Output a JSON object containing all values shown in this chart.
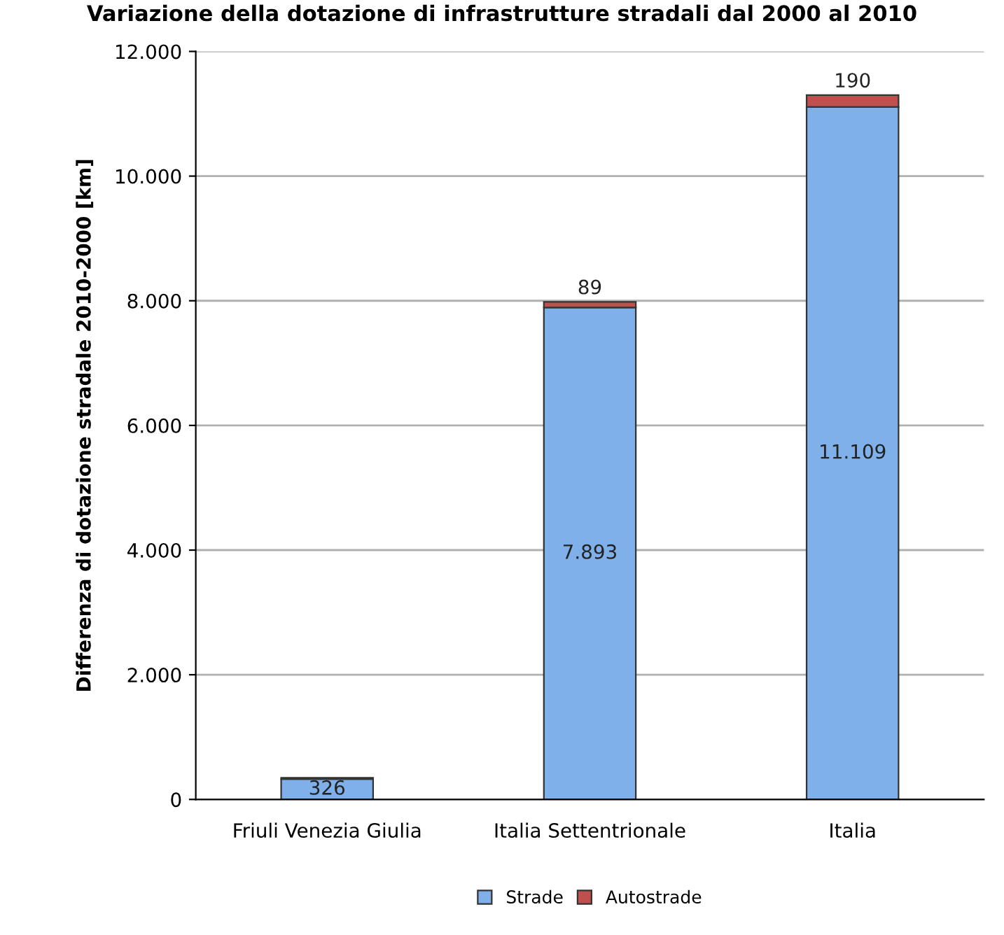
{
  "chart_data": {
    "type": "bar",
    "title": "Variazione della dotazione di infrastrutture stradali dal 2000 al 2010",
    "ylabel": "Differenza di dotazione stradale 2010-2000 [km]",
    "categories": [
      "Friuli Venezia Giulia",
      "Italia Settentrionale",
      "Italia"
    ],
    "stacked": true,
    "series": [
      {
        "name": "Strade",
        "color": "#7fb0ea",
        "values": [
          326,
          7893,
          11109
        ],
        "value_labels": [
          "326",
          "7.893",
          "11.109"
        ]
      },
      {
        "name": "Autostrade",
        "color": "#c0504d",
        "values": [
          20,
          89,
          190
        ],
        "value_labels": [
          null,
          "89",
          "190"
        ]
      }
    ],
    "ylim": [
      0,
      12000
    ],
    "yticks": [
      {
        "value": 0,
        "label": "0"
      },
      {
        "value": 2000,
        "label": "2.000"
      },
      {
        "value": 4000,
        "label": "4.000"
      },
      {
        "value": 6000,
        "label": "6.000"
      },
      {
        "value": 8000,
        "label": "8.000"
      },
      {
        "value": 10000,
        "label": "10.000"
      },
      {
        "value": 12000,
        "label": "12.000"
      }
    ],
    "grid": "y",
    "legend": "bottom"
  }
}
